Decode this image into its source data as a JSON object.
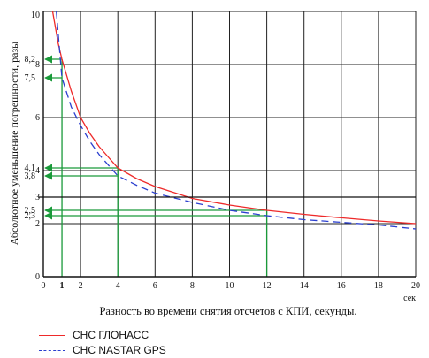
{
  "chart_data": {
    "type": "line",
    "title": "",
    "xlabel": "Разность во времени снятия отсчетов с КПИ, секунды.",
    "x_unit": "сек",
    "ylabel": "Абсолютное уменьшение погрешности, разы",
    "xlim": [
      0,
      20
    ],
    "ylim": [
      0,
      10
    ],
    "x_ticks": [
      "0",
      "1",
      "2",
      "4",
      "6",
      "8",
      "10",
      "12",
      "14",
      "16",
      "18",
      "20"
    ],
    "y_ticks": [
      "0",
      "2",
      "3",
      "4",
      "6",
      "8",
      "10"
    ],
    "grid": true,
    "legend_position": "bottom-left",
    "series": [
      {
        "name": "СНС ГЛОНАСС",
        "color": "#ee2a2a",
        "style": "solid",
        "x": [
          0.5,
          0.8,
          1,
          1.5,
          2,
          2.5,
          3,
          4,
          5,
          6,
          8,
          10,
          12,
          14,
          16,
          18,
          20
        ],
        "y": [
          10,
          8.8,
          8.2,
          7.0,
          6.0,
          5.4,
          4.9,
          4.1,
          3.7,
          3.4,
          2.95,
          2.7,
          2.5,
          2.35,
          2.22,
          2.1,
          2.0
        ]
      },
      {
        "name": "СНС NASTAR GPS",
        "color": "#2b3fcf",
        "style": "dashed",
        "x": [
          0.7,
          1,
          1.5,
          2,
          2.5,
          3,
          4,
          5,
          6,
          8,
          10,
          12,
          14,
          16,
          18,
          20
        ],
        "y": [
          10,
          7.5,
          6.4,
          5.7,
          5.1,
          4.6,
          3.8,
          3.45,
          3.15,
          2.8,
          2.5,
          2.3,
          2.15,
          2.05,
          1.95,
          1.8
        ]
      }
    ],
    "reference_lines": [
      {
        "label": "8,2",
        "x": 1,
        "y": 8.2
      },
      {
        "label": "7,5",
        "x": 1,
        "y": 7.5
      },
      {
        "label": "4,1",
        "x": 4,
        "y": 4.1
      },
      {
        "label": "3,8",
        "x": 4,
        "y": 3.8
      },
      {
        "label": "2,5",
        "x": 12,
        "y": 2.5
      },
      {
        "label": "2,3",
        "x": 12,
        "y": 2.3
      }
    ],
    "reference_color": "#1a9a3a"
  }
}
